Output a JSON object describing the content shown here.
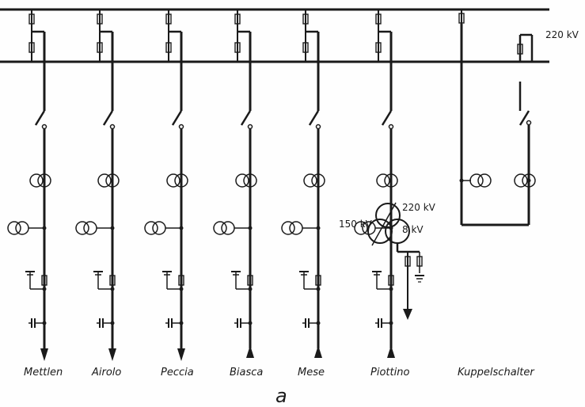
{
  "busbar_voltage": "220 kV",
  "feeders": [
    {
      "name": "Mettlen",
      "direction": "out"
    },
    {
      "name": "Airolo",
      "direction": "out"
    },
    {
      "name": "Peccia",
      "direction": "out"
    },
    {
      "name": "Biasca",
      "direction": "in"
    },
    {
      "name": "Mese",
      "direction": "in"
    },
    {
      "name": "Piottino",
      "direction": "in"
    }
  ],
  "transformer": {
    "primary": "220 kV",
    "secondary": "150 kV",
    "tertiary": "8 kV"
  },
  "coupler_label": "Kuppelschalter",
  "figure_letter": "a"
}
